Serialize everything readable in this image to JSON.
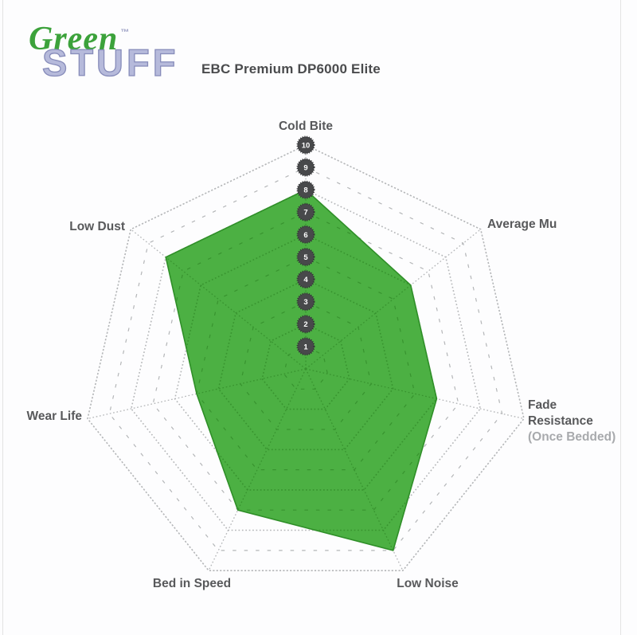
{
  "logo": {
    "word_top": "Green",
    "word_bottom": "STUFF",
    "trademark": "TM",
    "word_top_color": "#3ca23b",
    "word_bottom_color": "#b6badb"
  },
  "header": {
    "title": "EBC Premium DP6000 Elite"
  },
  "chart_data": {
    "type": "radar",
    "title": "EBC Premium DP6000 Elite",
    "legend": "none",
    "grid": true,
    "scale": {
      "min": 0,
      "max": 10,
      "ring_interval": 1,
      "tick_labels": [
        "1",
        "2",
        "3",
        "4",
        "5",
        "6",
        "7",
        "8",
        "9",
        "10"
      ]
    },
    "categories": [
      "Cold Bite",
      "Average Mu",
      "Fade Resistance (Once Bedded)",
      "Low Noise",
      "Bed in Speed",
      "Wear Life",
      "Low Dust"
    ],
    "values": [
      8,
      6,
      6,
      9,
      7,
      5,
      8
    ],
    "axes": [
      {
        "id": "cold-bite",
        "label": "Cold Bite",
        "sublabel": "",
        "value": 8
      },
      {
        "id": "average-mu",
        "label": "Average Mu",
        "sublabel": "",
        "value": 6
      },
      {
        "id": "fade-resistance",
        "label": "Fade Resistance",
        "sublabel": "(Once Bedded)",
        "value": 6
      },
      {
        "id": "low-noise",
        "label": "Low Noise",
        "sublabel": "",
        "value": 9
      },
      {
        "id": "bed-in-speed",
        "label": "Bed in Speed",
        "sublabel": "",
        "value": 7
      },
      {
        "id": "wear-life",
        "label": "Wear Life",
        "sublabel": "",
        "value": 5
      },
      {
        "id": "low-dust",
        "label": "Low Dust",
        "sublabel": "",
        "value": 8
      }
    ],
    "series": [
      {
        "name": "EBC Premium DP6000 Elite",
        "values": [
          8,
          6,
          6,
          9,
          7,
          5,
          8
        ]
      }
    ],
    "colors": {
      "fill": "#4cb043",
      "fill_outline": "#2f8f28",
      "grid": "#b4b6b8",
      "grid_on_fill": "#38932f",
      "badge": "#48494b",
      "badge_text": "#ffffff",
      "label": "#58595b",
      "label_muted": "#a8aaad"
    }
  }
}
